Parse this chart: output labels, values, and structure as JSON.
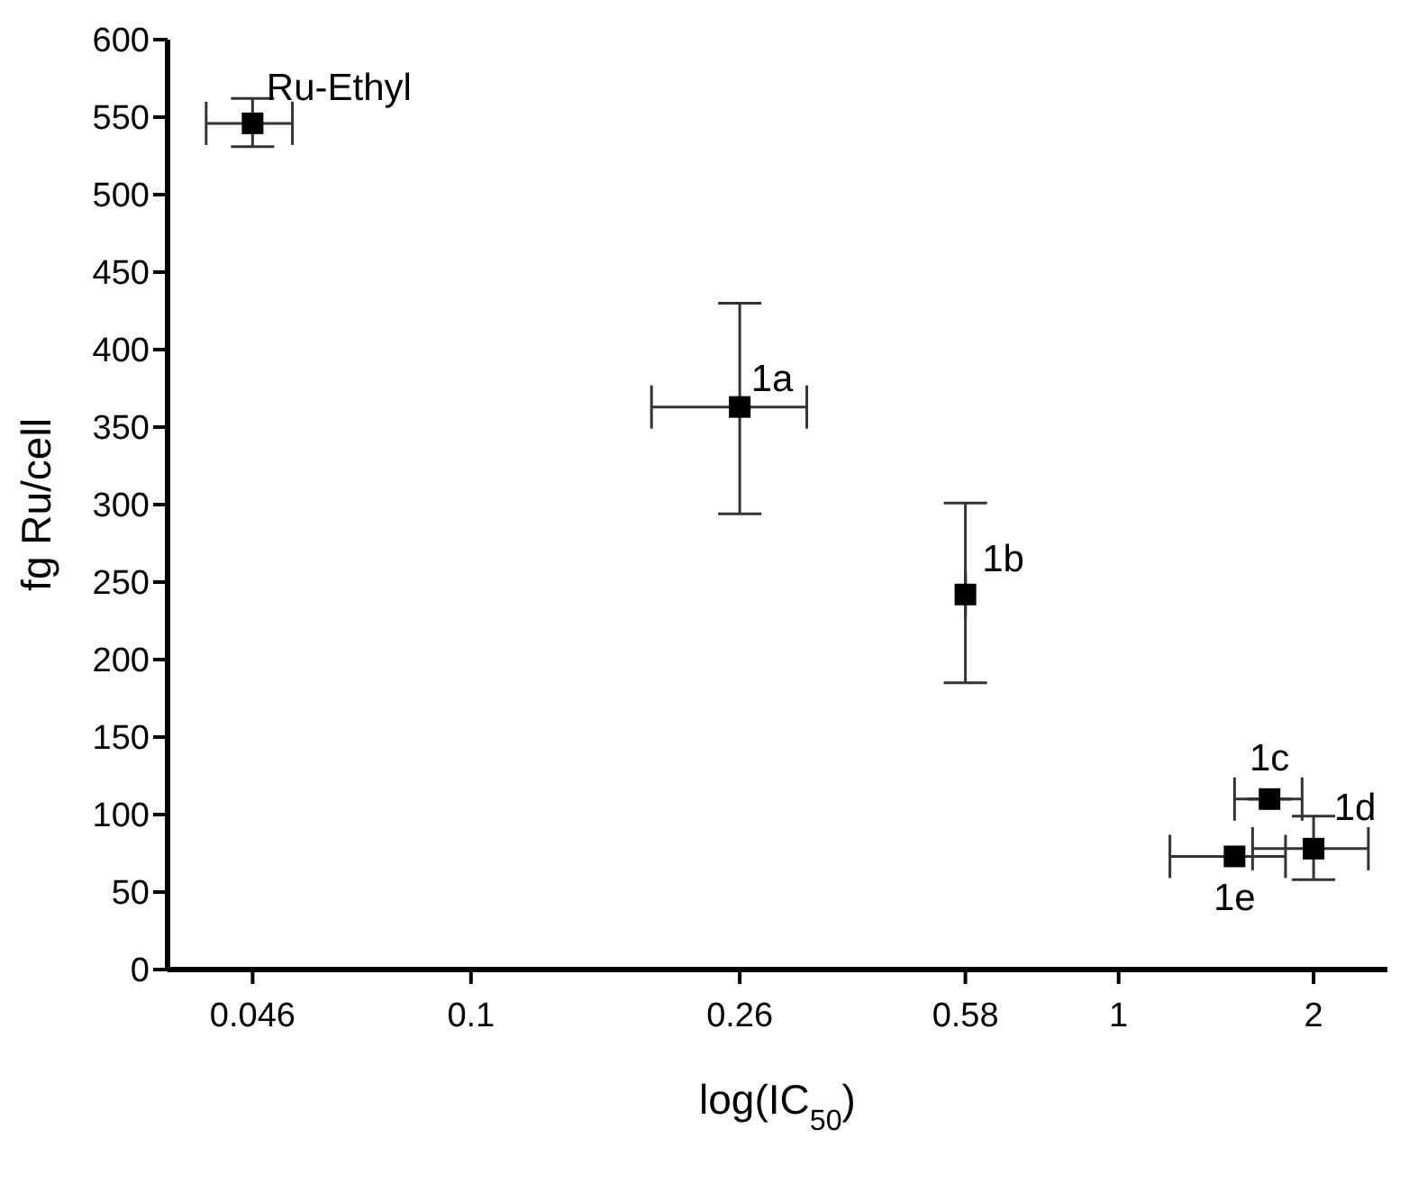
{
  "chart_data": {
    "type": "scatter",
    "xlabel": "log(IC$_{50}$)",
    "ylabel": "fg Ru/cell",
    "log": "x",
    "x": [
      0.046,
      0.26,
      0.58,
      1.71,
      2.0,
      1.51
    ],
    "values": [
      546,
      363,
      242,
      110,
      78,
      73
    ],
    "errors": [
      [
        531,
        562
      ],
      [
        294,
        430
      ],
      [
        185,
        301
      ],
      null,
      [
        58,
        99
      ],
      null
    ],
    "xerrors": [
      [
        0.039,
        0.053
      ],
      [
        0.19,
        0.33
      ],
      null,
      [
        1.51,
        1.92
      ],
      [
        1.61,
        2.43
      ],
      [
        1.2,
        1.81
      ]
    ],
    "color": "#000000",
    "marker": "square",
    "xlim": [
      0.034,
      2.6
    ],
    "xticks": [
      0.046,
      0.1,
      0.26,
      0.58,
      1,
      2
    ],
    "ylim": [
      0,
      600
    ],
    "yticks": [
      0,
      50,
      100,
      150,
      200,
      250,
      300,
      350,
      400,
      450,
      500,
      550,
      600
    ],
    "grid": false,
    "legend": false,
    "annotations": [
      {
        "text": "Ru-Ethyl",
        "x": 0.046,
        "y": 546
      },
      {
        "text": "1a",
        "x": 0.26,
        "y": 363
      },
      {
        "text": "1b",
        "x": 0.58,
        "y": 242
      },
      {
        "text": "1c",
        "x": 1.71,
        "y": 110
      },
      {
        "text": "1d",
        "x": 2.0,
        "y": 78
      },
      {
        "text": "1e",
        "x": 1.51,
        "y": 73
      }
    ]
  }
}
